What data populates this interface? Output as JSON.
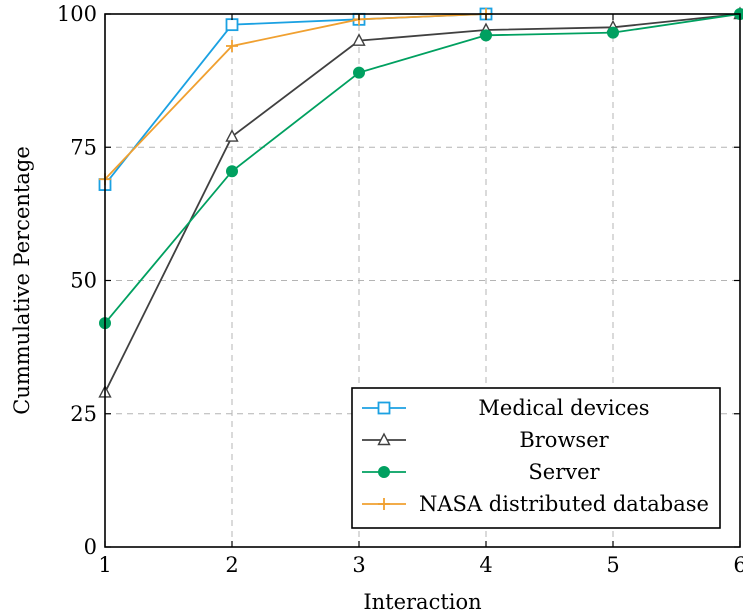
{
  "chart_data": {
    "type": "line",
    "title": "",
    "xlabel": "Interaction",
    "ylabel": "Cummulative Percentage",
    "xlim": [
      1,
      6
    ],
    "ylim": [
      0,
      100
    ],
    "xticks": [
      "1",
      "2",
      "3",
      "4",
      "5",
      "6"
    ],
    "yticks": [
      "0",
      "25",
      "50",
      "75",
      "100"
    ],
    "grid": true,
    "legend_position": "bottom-right",
    "series": [
      {
        "name": "Medical devices",
        "color": "#1ba1e2",
        "marker": "square-open",
        "x": [
          1,
          2,
          3,
          4
        ],
        "values": [
          68,
          98,
          99,
          100
        ]
      },
      {
        "name": "Browser",
        "color": "#404040",
        "marker": "triangle-open",
        "x": [
          1,
          2,
          3,
          4,
          5,
          6
        ],
        "values": [
          29,
          77,
          95,
          97,
          97.5,
          100
        ]
      },
      {
        "name": "Server",
        "color": "#00a060",
        "marker": "circle-filled",
        "x": [
          1,
          2,
          3,
          4,
          5,
          6
        ],
        "values": [
          42,
          70.5,
          89,
          96,
          96.5,
          100
        ]
      },
      {
        "name": "NASA distributed database",
        "color": "#f0a030",
        "marker": "plus",
        "x": [
          1,
          2,
          3,
          4
        ],
        "values": [
          69,
          94,
          99,
          100
        ]
      }
    ]
  }
}
